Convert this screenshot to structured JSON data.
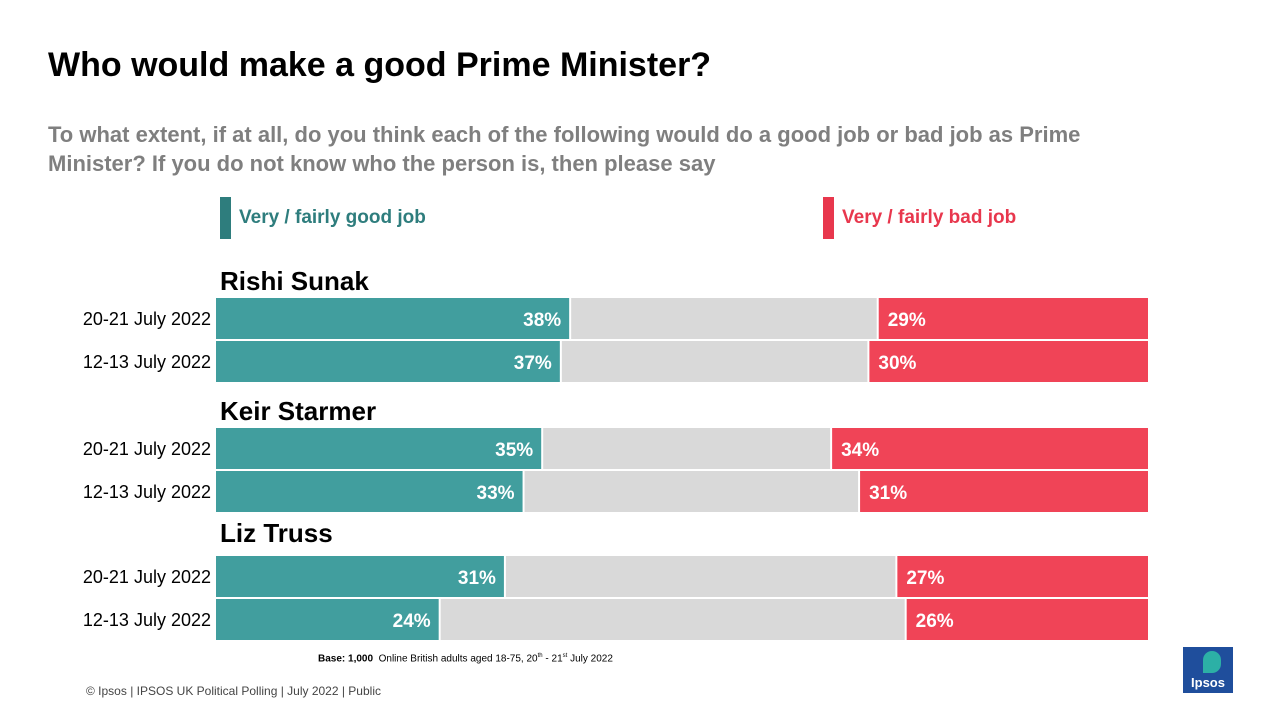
{
  "title": "Who would make a good Prime Minister?",
  "subtitle": "To what extent, if at all, do you think each of the following would do a good job or bad job as Prime Minister? If you do not know who the person is, then please say",
  "legend": {
    "good": "Very / fairly good job",
    "bad": "Very / fairly bad job"
  },
  "colors": {
    "good": "#419e9e",
    "bad": "#f04457",
    "neutral": "#d9d9d9",
    "good_legend": "#2e7d7d",
    "bad_legend": "#e8374d"
  },
  "chart_data": {
    "type": "bar",
    "orientation": "horizontal-stacked",
    "xlim": [
      0,
      100
    ],
    "series": [
      {
        "name": "Very / fairly good job",
        "values": [
          38,
          37,
          35,
          33,
          31,
          24
        ]
      },
      {
        "name": "Very / fairly bad job",
        "values": [
          29,
          30,
          34,
          31,
          27,
          26
        ]
      }
    ],
    "groups": [
      {
        "name": "Rishi Sunak",
        "rows": [
          {
            "label": "20-21 July 2022",
            "good": 38,
            "bad": 29
          },
          {
            "label": "12-13 July 2022",
            "good": 37,
            "bad": 30
          }
        ]
      },
      {
        "name": "Keir Starmer",
        "rows": [
          {
            "label": "20-21 July 2022",
            "good": 35,
            "bad": 34
          },
          {
            "label": "12-13 July 2022",
            "good": 33,
            "bad": 31
          }
        ]
      },
      {
        "name": "Liz Truss",
        "rows": [
          {
            "label": "20-21 July 2022",
            "good": 31,
            "bad": 27
          },
          {
            "label": "12-13 July 2022",
            "good": 24,
            "bad": 26
          }
        ]
      }
    ]
  },
  "base_note": {
    "bold": "Base: 1,000",
    "text_a": "Online British adults aged 18-75, 20",
    "sup1": "th",
    "text_b": " - 21",
    "sup2": "st",
    "text_c": " July 2022"
  },
  "footer": "© Ipsos | IPSOS UK Political Polling | July 2022 | Public",
  "logo_text": "Ipsos"
}
